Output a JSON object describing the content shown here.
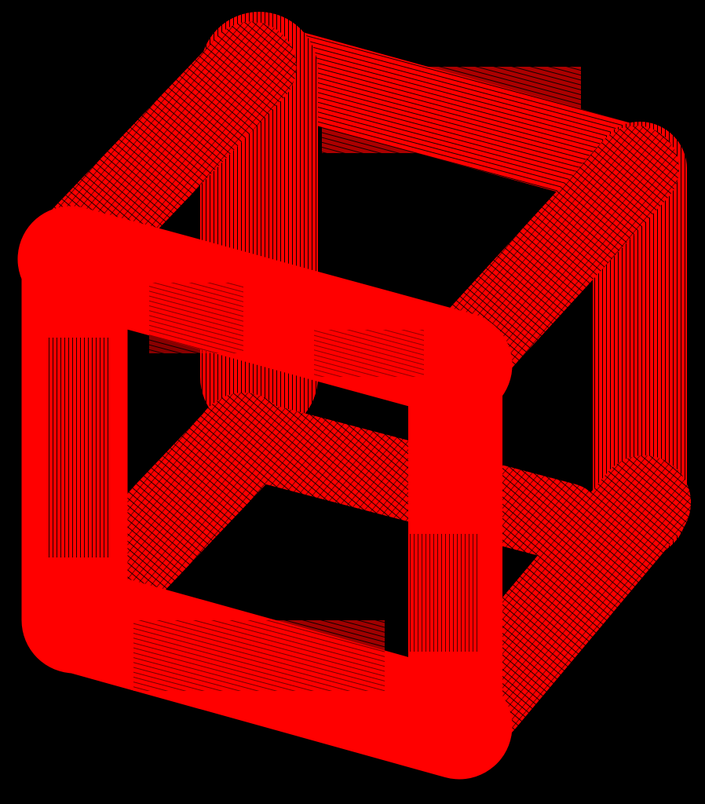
{
  "scene": {
    "subject": "wireframe-cube",
    "background_color": "#000000",
    "stroke_color": "#ff0000",
    "texture": "dense-parallel-hatching",
    "shading": "flat",
    "edge_count": 12,
    "face_openings": "through"
  }
}
